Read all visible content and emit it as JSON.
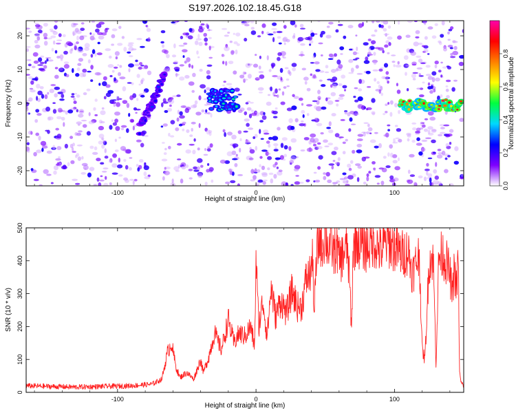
{
  "title": "S197.2026.102.18.45.G18",
  "chart_data": [
    {
      "type": "heatmap",
      "id": "spectrogram",
      "xlabel": "Height of straight line (km)",
      "ylabel": "Frequency (Hz)",
      "xlim": [
        -166,
        150
      ],
      "ylim": [
        -24.5,
        24.5
      ],
      "xticks": [
        -100,
        0,
        100
      ],
      "yticks": [
        -20,
        -10,
        0,
        10,
        20
      ],
      "grid": false,
      "background_noise": {
        "x_range": [
          -166,
          150
        ],
        "level": 0.12,
        "density": "high"
      },
      "blank_columns_x": [
        [
          -77,
          -68
        ],
        [
          -31,
          -24
        ],
        [
          104,
          108
        ],
        [
          145,
          148
        ]
      ],
      "features": [
        {
          "name": "diagonal-streak",
          "x": [
            -84,
            -66
          ],
          "freq": [
            -8,
            8
          ],
          "peak_amplitude": 0.3
        },
        {
          "name": "cluster-left",
          "x": [
            -34,
            -14
          ],
          "freq": [
            -2,
            4
          ],
          "peak_amplitude": 0.45
        },
        {
          "name": "carrier-line",
          "x": [
            104,
            148
          ],
          "freq": [
            -2,
            1
          ],
          "peak_amplitude": 0.95
        }
      ],
      "colorbar": {
        "label": "Normalized spectral amplitude",
        "range": [
          0,
          1
        ],
        "ticks": [
          0,
          0.2,
          0.4,
          0.6,
          0.8
        ],
        "tick_labels": [
          "0.0",
          "0.2",
          "0.4",
          "0.6",
          "0.8"
        ],
        "colors": [
          "#ffffff",
          "#7e00ff",
          "#0000ff",
          "#00d8ff",
          "#00ff40",
          "#ffff00",
          "#ff8000",
          "#ff0000",
          "#ff00aa"
        ]
      }
    },
    {
      "type": "line",
      "id": "snr",
      "xlabel": "Height of straight line (km)",
      "ylabel": "SNR (10 * v/v)",
      "xlim": [
        -166,
        150
      ],
      "ylim": [
        0,
        500
      ],
      "xticks": [
        -100,
        0,
        100
      ],
      "yticks": [
        0,
        100,
        200,
        300,
        400,
        500
      ],
      "grid": false,
      "series": [
        {
          "name": "SNR",
          "color": "#ff2020",
          "x": [
            -166,
            -150,
            -130,
            -110,
            -90,
            -75,
            -68,
            -64,
            -61,
            -58,
            -55,
            -50,
            -45,
            -40,
            -38,
            -34,
            -30,
            -25,
            -20,
            -16,
            -12,
            -8,
            -4,
            -1,
            0,
            2,
            5,
            8,
            11,
            14,
            18,
            22,
            26,
            30,
            33,
            36,
            39,
            41,
            42,
            44,
            46,
            48,
            50,
            52,
            54,
            56,
            58,
            60,
            62,
            64,
            66,
            68,
            69,
            70,
            71,
            72,
            75,
            80,
            85,
            90,
            95,
            100,
            105,
            110,
            113,
            116,
            118,
            120,
            122,
            125,
            128,
            130,
            132,
            135,
            138,
            140,
            142,
            143,
            145,
            146,
            147,
            148,
            150
          ],
          "y": [
            20,
            18,
            16,
            18,
            20,
            25,
            40,
            120,
            150,
            80,
            45,
            60,
            40,
            100,
            60,
            110,
            180,
            130,
            220,
            150,
            180,
            170,
            200,
            140,
            410,
            200,
            280,
            170,
            320,
            230,
            280,
            240,
            310,
            260,
            260,
            340,
            360,
            400,
            240,
            430,
            470,
            450,
            480,
            440,
            460,
            420,
            450,
            400,
            410,
            430,
            440,
            300,
            180,
            420,
            440,
            470,
            450,
            440,
            460,
            430,
            460,
            440,
            420,
            430,
            360,
            400,
            420,
            130,
            100,
            400,
            410,
            90,
            410,
            420,
            390,
            360,
            290,
            380,
            310,
            420,
            60,
            30,
            20
          ]
        }
      ]
    }
  ]
}
